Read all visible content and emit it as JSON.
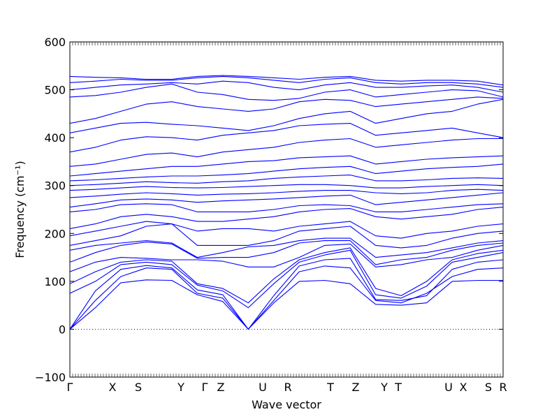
{
  "chart_data": {
    "type": "line",
    "title": "",
    "xlabel": "Wave vector",
    "ylabel": "Frequency (cm⁻¹)",
    "ylim": [
      -100,
      600
    ],
    "y_ticks": [
      -100,
      0,
      100,
      200,
      300,
      400,
      500,
      600
    ],
    "q_points": [
      "Γ",
      "X",
      "S",
      "Y",
      "Γ",
      "Z",
      "U",
      "R",
      "T",
      "Z",
      "Y",
      "T",
      "U",
      "X",
      "S",
      "R"
    ],
    "zero_line": 0,
    "color": "#0000ff",
    "zero_line_style": "dotted",
    "series": [
      {
        "values": [
          0,
          45,
          97,
          103,
          102,
          72,
          58,
          0,
          55,
          100,
          102,
          95,
          52,
          50,
          55,
          100,
          102,
          102
        ]
      },
      {
        "values": [
          0,
          60,
          110,
          128,
          125,
          75,
          65,
          0,
          60,
          120,
          132,
          128,
          60,
          55,
          75,
          110,
          125,
          128
        ]
      },
      {
        "values": [
          0,
          80,
          125,
          133,
          128,
          82,
          72,
          0,
          70,
          132,
          145,
          148,
          62,
          60,
          70,
          125,
          140,
          145
        ]
      },
      {
        "values": [
          75,
          100,
          135,
          140,
          135,
          92,
          80,
          45,
          95,
          140,
          155,
          165,
          72,
          65,
          90,
          140,
          150,
          160
        ]
      },
      {
        "values": [
          95,
          120,
          140,
          145,
          142,
          95,
          85,
          55,
          105,
          145,
          160,
          170,
          85,
          70,
          100,
          145,
          158,
          165
        ]
      },
      {
        "values": [
          120,
          140,
          150,
          148,
          145,
          145,
          142,
          130,
          130,
          150,
          175,
          178,
          130,
          135,
          145,
          150,
          165,
          175
        ]
      },
      {
        "values": [
          140,
          160,
          175,
          182,
          178,
          148,
          150,
          150,
          160,
          180,
          185,
          185,
          135,
          145,
          150,
          165,
          175,
          180
        ]
      },
      {
        "values": [
          165,
          175,
          180,
          185,
          180,
          150,
          160,
          172,
          175,
          185,
          190,
          190,
          150,
          155,
          160,
          170,
          180,
          185
        ]
      },
      {
        "values": [
          175,
          185,
          195,
          215,
          220,
          175,
          175,
          175,
          185,
          205,
          210,
          215,
          175,
          170,
          175,
          190,
          200,
          205
        ]
      },
      {
        "values": [
          195,
          205,
          215,
          225,
          220,
          205,
          210,
          210,
          205,
          215,
          220,
          225,
          195,
          190,
          200,
          205,
          215,
          220
        ]
      },
      {
        "values": [
          210,
          220,
          235,
          240,
          235,
          225,
          225,
          230,
          235,
          245,
          250,
          252,
          235,
          230,
          235,
          240,
          250,
          255
        ]
      },
      {
        "values": [
          245,
          250,
          260,
          262,
          260,
          245,
          245,
          245,
          250,
          258,
          260,
          258,
          245,
          245,
          250,
          255,
          260,
          262
        ]
      },
      {
        "values": [
          255,
          262,
          270,
          272,
          270,
          265,
          268,
          270,
          272,
          275,
          278,
          280,
          260,
          265,
          270,
          275,
          280,
          285
        ]
      },
      {
        "values": [
          275,
          278,
          282,
          285,
          283,
          280,
          282,
          283,
          285,
          288,
          290,
          290,
          285,
          283,
          285,
          290,
          292,
          290
        ]
      },
      {
        "values": [
          290,
          292,
          295,
          298,
          296,
          295,
          296,
          298,
          300,
          302,
          302,
          300,
          295,
          295,
          298,
          300,
          302,
          300
        ]
      },
      {
        "values": [
          300,
          302,
          305,
          308,
          306,
          305,
          308,
          310,
          315,
          318,
          320,
          322,
          310,
          310,
          312,
          315,
          316,
          315
        ]
      },
      {
        "values": [
          310,
          312,
          315,
          318,
          320,
          320,
          322,
          325,
          330,
          335,
          338,
          340,
          325,
          330,
          335,
          338,
          340,
          345
        ]
      },
      {
        "values": [
          320,
          325,
          330,
          335,
          340,
          340,
          345,
          350,
          352,
          358,
          360,
          362,
          345,
          350,
          355,
          358,
          360,
          362
        ]
      },
      {
        "values": [
          340,
          345,
          355,
          365,
          368,
          360,
          370,
          375,
          380,
          390,
          395,
          398,
          380,
          385,
          390,
          395,
          398,
          398
        ]
      },
      {
        "values": [
          370,
          380,
          395,
          402,
          400,
          395,
          405,
          410,
          415,
          425,
          428,
          430,
          405,
          410,
          415,
          420,
          410,
          400
        ]
      },
      {
        "values": [
          410,
          420,
          430,
          432,
          428,
          425,
          420,
          415,
          425,
          440,
          450,
          455,
          430,
          440,
          450,
          455,
          470,
          480
        ]
      },
      {
        "values": [
          430,
          440,
          455,
          470,
          475,
          465,
          460,
          455,
          460,
          475,
          480,
          478,
          465,
          470,
          475,
          480,
          485,
          482
        ]
      },
      {
        "values": [
          485,
          488,
          495,
          505,
          512,
          495,
          490,
          480,
          478,
          482,
          495,
          500,
          485,
          490,
          495,
          500,
          498,
          485
        ]
      },
      {
        "values": [
          500,
          505,
          510,
          512,
          515,
          512,
          518,
          515,
          505,
          500,
          510,
          515,
          505,
          505,
          508,
          510,
          505,
          495
        ]
      },
      {
        "values": [
          515,
          518,
          522,
          520,
          520,
          525,
          528,
          525,
          520,
          515,
          522,
          525,
          515,
          512,
          515,
          515,
          512,
          505
        ]
      },
      {
        "values": [
          528,
          526,
          525,
          522,
          522,
          528,
          530,
          528,
          525,
          522,
          526,
          528,
          520,
          518,
          520,
          520,
          518,
          510
        ]
      }
    ]
  }
}
